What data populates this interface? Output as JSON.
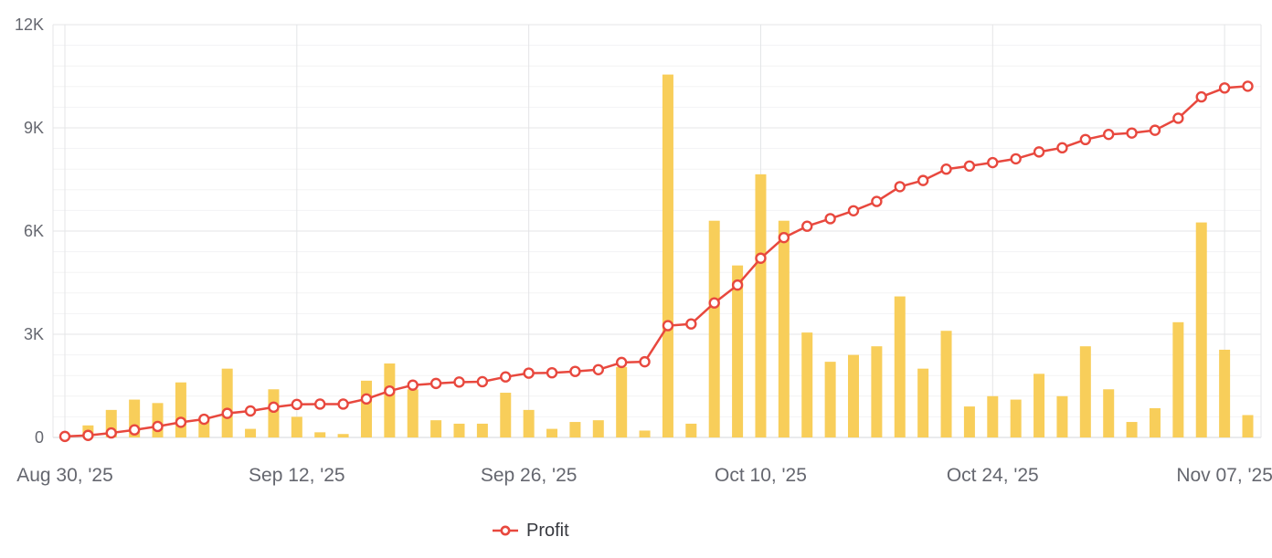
{
  "chart_data": {
    "type": "combo-bar-line",
    "n_points": 52,
    "ylim": [
      0,
      12000
    ],
    "grid": true,
    "y_ticks": [
      {
        "value": 0,
        "label": "0"
      },
      {
        "value": 3000,
        "label": "3K"
      },
      {
        "value": 6000,
        "label": "6K"
      },
      {
        "value": 9000,
        "label": "9K"
      },
      {
        "value": 12000,
        "label": "12K"
      }
    ],
    "x_ticks": [
      {
        "index": 0,
        "label": "Aug 30, '25"
      },
      {
        "index": 10,
        "label": "Sep 12, '25"
      },
      {
        "index": 20,
        "label": "Sep 26, '25"
      },
      {
        "index": 30,
        "label": "Oct 10, '25"
      },
      {
        "index": 40,
        "label": "Oct 24, '25"
      },
      {
        "index": 50,
        "label": "Nov 07, '25"
      }
    ],
    "series": [
      {
        "name": "",
        "type": "bar",
        "color": "#F8CE5A",
        "values": [
          0,
          350,
          800,
          1100,
          1000,
          1600,
          550,
          2000,
          250,
          1400,
          600,
          150,
          100,
          1650,
          2150,
          1400,
          500,
          400,
          400,
          1300,
          800,
          250,
          450,
          500,
          2050,
          200,
          10550,
          400,
          6300,
          5000,
          7650,
          6300,
          3050,
          2200,
          2400,
          2650,
          4100,
          2000,
          3100,
          900,
          1200,
          1100,
          1850,
          1200,
          2650,
          1400,
          450,
          850,
          3350,
          6250,
          2550,
          650
        ]
      },
      {
        "name": "Profit",
        "type": "line",
        "color": "#E8483E",
        "marker": "open-circle",
        "marker_fill": "#FFFFFF",
        "values": [
          30,
          60,
          130,
          220,
          320,
          440,
          530,
          700,
          770,
          880,
          960,
          970,
          970,
          1120,
          1350,
          1520,
          1570,
          1610,
          1620,
          1760,
          1870,
          1880,
          1920,
          1970,
          2180,
          2200,
          3250,
          3300,
          3910,
          4430,
          5210,
          5810,
          6140,
          6360,
          6590,
          6860,
          7290,
          7470,
          7800,
          7890,
          7990,
          8100,
          8300,
          8420,
          8660,
          8810,
          8850,
          8930,
          9280,
          9900,
          10160,
          10210
        ]
      }
    ],
    "legend": {
      "position": "bottom",
      "items": [
        {
          "label": "Profit",
          "color": "#E8483E",
          "marker": "open-circle-line"
        }
      ]
    }
  },
  "colors": {
    "background": "#FFFFFF",
    "bar": "#F8CE5A",
    "line": "#E8483E",
    "marker_fill": "#FFFFFF",
    "major_grid": "#e4e5e7",
    "minor_grid": "#f3f3f4",
    "zero_axis": "#d6d7d9",
    "axis_text": "#65676f",
    "legend_text": "#37393f"
  }
}
